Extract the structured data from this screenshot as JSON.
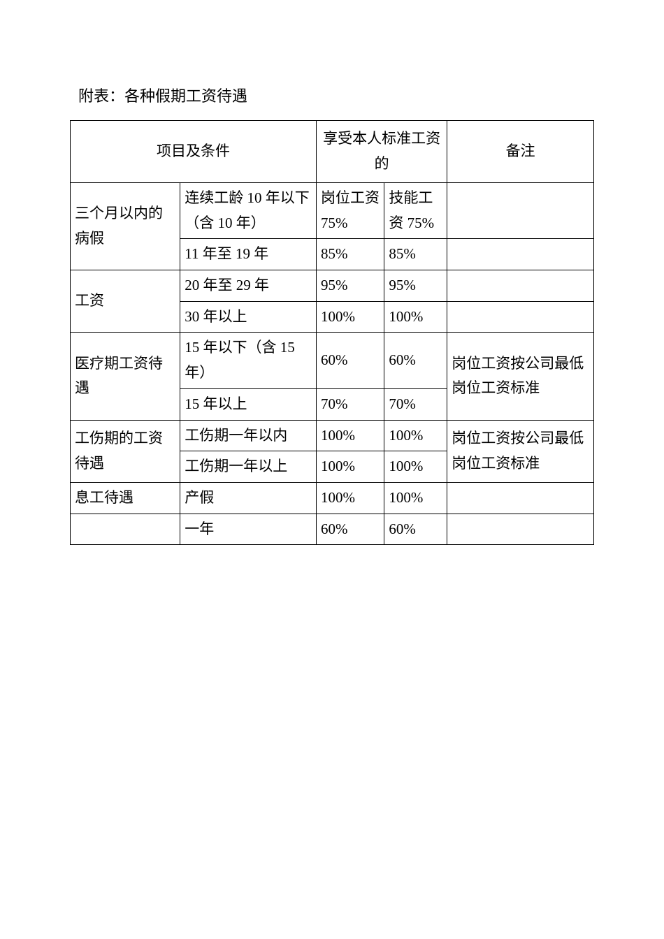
{
  "title": "附表：各种假期工资待遇",
  "headers": {
    "col12": "项目及条件",
    "col34": "享受本人标准工资的",
    "col5": "备注"
  },
  "rows": [
    {
      "c1": "三个月以内的病假",
      "c2": "连续工龄 10 年以下（含 10 年）",
      "c3": "岗位工资75%",
      "c4": "技能工资 75%",
      "c5": ""
    },
    {
      "c2": "11 年至 19 年",
      "c3": "85%",
      "c4": "85%",
      "c5": ""
    },
    {
      "c1": "工资",
      "c2": "20 年至 29 年",
      "c3": "95%",
      "c4": "95%",
      "c5": ""
    },
    {
      "c2": "30 年以上",
      "c3": "100%",
      "c4": "100%",
      "c5": ""
    },
    {
      "c1": "医疗期工资待遇",
      "c2": "15 年以下（含 15年）",
      "c3": "60%",
      "c4": "60%",
      "c5": "岗位工资按公司最低岗位工资标准"
    },
    {
      "c2": "15 年以上",
      "c3": "70%",
      "c4": "70%"
    },
    {
      "c1": "工伤期的工资待遇",
      "c2": "工伤期一年以内",
      "c3": "100%",
      "c4": "100%",
      "c5": "岗位工资按公司最低岗位工资标准"
    },
    {
      "c2": "工伤期一年以上",
      "c3": "100%",
      "c4": "100%"
    },
    {
      "c1": "息工待遇",
      "c2": "产假",
      "c3": "100%",
      "c4": "100%",
      "c5": ""
    },
    {
      "c2": "一年",
      "c3": "60%",
      "c4": "60%",
      "c5": ""
    }
  ]
}
